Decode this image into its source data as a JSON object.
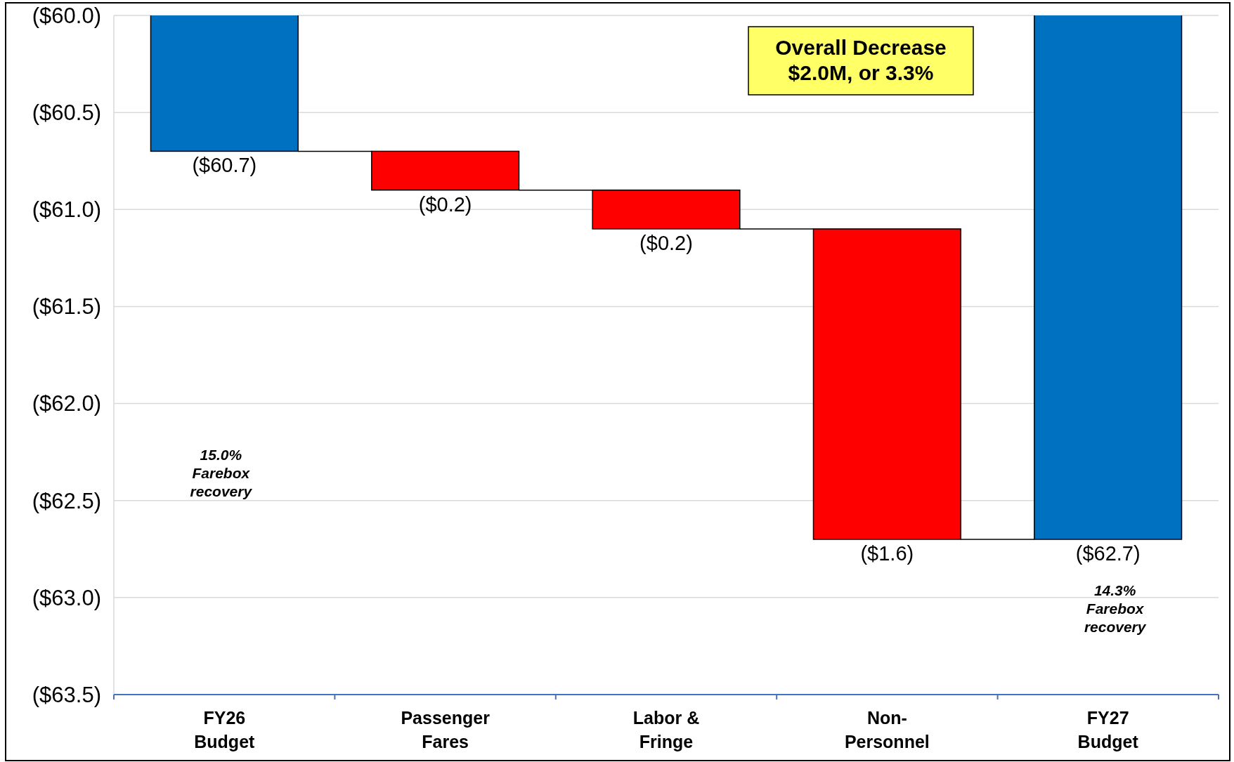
{
  "chart_data": {
    "type": "bar",
    "categories": [
      "FY26 Budget",
      "Passenger Fares",
      "Labor & Fringe",
      "Non-Personnel",
      "FY27 Budget"
    ],
    "values": [
      -60.7,
      -0.2,
      -0.2,
      -1.6,
      -62.7
    ],
    "base": [
      0,
      -60.7,
      -60.9,
      -61.1,
      0
    ],
    "value_labels": [
      "($60.7)",
      "($0.2)",
      "($0.2)",
      "($1.6)",
      "($62.7)"
    ],
    "colors": [
      "#0070c0",
      "#ff0000",
      "#ff0000",
      "#ff0000",
      "#0070c0"
    ],
    "ylim": [
      -63.5,
      -60
    ],
    "yticks": [
      {
        "value": -60,
        "label": "($60.0)"
      },
      {
        "value": -60.5,
        "label": "($60.5)"
      },
      {
        "value": -61,
        "label": "($61.0)"
      },
      {
        "value": -61.5,
        "label": "($61.5)"
      },
      {
        "value": -62,
        "label": "($62.0)"
      },
      {
        "value": -62.5,
        "label": "($62.5)"
      },
      {
        "value": -63,
        "label": "($63.0)"
      },
      {
        "value": -63.5,
        "label": "($63.5)"
      }
    ],
    "grid": "y",
    "annotations": [
      "Overall Decrease $2.0M, or 3.3%",
      "15.0% Farebox recovery",
      "14.3% Farebox recovery"
    ]
  }
}
